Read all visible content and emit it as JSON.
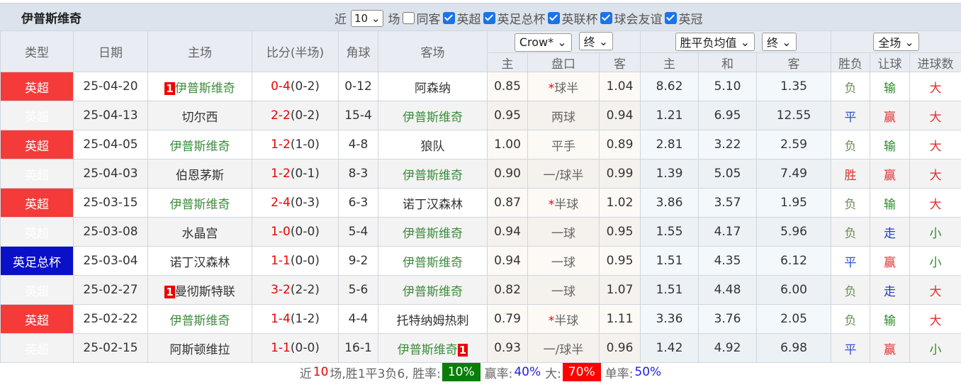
{
  "title": "伊普斯维奇",
  "filters": {
    "recent_label": "近",
    "count": "10",
    "games_label": "场",
    "same_venue": {
      "label": "同客",
      "checked": false
    },
    "competitions": [
      {
        "label": "英超",
        "checked": true
      },
      {
        "label": "英足总杯",
        "checked": true
      },
      {
        "label": "英联杯",
        "checked": true
      },
      {
        "label": "球会友谊",
        "checked": true
      },
      {
        "label": "英冠",
        "checked": true
      }
    ]
  },
  "headers": {
    "type": "类型",
    "date": "日期",
    "home": "主场",
    "score": "比分(半场)",
    "corner": "角球",
    "away": "客场",
    "ah_company": "Crow*",
    "ah_stage": "终",
    "eu_type": "胜平负均值",
    "eu_stage": "终",
    "result_scope": "全场",
    "ah_home": "主",
    "ah_line": "盘口",
    "ah_away": "客",
    "eu_home": "主",
    "eu_draw": "和",
    "eu_away": "客",
    "wl": "胜负",
    "hc": "让球",
    "goals": "进球数"
  },
  "rows": [
    {
      "type": "英超",
      "cup": false,
      "date": "25-04-20",
      "home": "伊普斯维奇",
      "home_rc": "1",
      "home_ips": true,
      "ft": "0-4",
      "ht": "(0-2)",
      "corner": "0-12",
      "away": "阿森纳",
      "away_rc": "",
      "away_ips": false,
      "ah_h": "0.85",
      "ah_star": "*",
      "ah_line": "球半",
      "ah_a": "1.04",
      "eu_h": "8.62",
      "eu_d": "5.10",
      "eu_a": "1.35",
      "wl": "负",
      "hc": "输",
      "goals": "大"
    },
    {
      "type": "英超",
      "cup": false,
      "date": "25-04-13",
      "home": "切尔西",
      "home_rc": "",
      "home_ips": false,
      "ft": "2-2",
      "ht": "(0-2)",
      "corner": "15-4",
      "away": "伊普斯维奇",
      "away_rc": "",
      "away_ips": true,
      "ah_h": "0.95",
      "ah_star": "",
      "ah_line": "两球",
      "ah_a": "0.94",
      "eu_h": "1.21",
      "eu_d": "6.95",
      "eu_a": "12.55",
      "wl": "平",
      "hc": "赢",
      "goals": "大"
    },
    {
      "type": "英超",
      "cup": false,
      "date": "25-04-05",
      "home": "伊普斯维奇",
      "home_rc": "",
      "home_ips": true,
      "ft": "1-2",
      "ht": "(1-0)",
      "corner": "4-8",
      "away": "狼队",
      "away_rc": "",
      "away_ips": false,
      "ah_h": "1.00",
      "ah_star": "",
      "ah_line": "平手",
      "ah_a": "0.89",
      "eu_h": "2.81",
      "eu_d": "3.22",
      "eu_a": "2.59",
      "wl": "负",
      "hc": "输",
      "goals": "大"
    },
    {
      "type": "英超",
      "cup": false,
      "date": "25-04-03",
      "home": "伯恩茅斯",
      "home_rc": "",
      "home_ips": false,
      "ft": "1-2",
      "ht": "(0-1)",
      "corner": "8-3",
      "away": "伊普斯维奇",
      "away_rc": "",
      "away_ips": true,
      "ah_h": "0.90",
      "ah_star": "",
      "ah_line": "一/球半",
      "ah_a": "0.99",
      "eu_h": "1.39",
      "eu_d": "5.05",
      "eu_a": "7.49",
      "wl": "胜",
      "hc": "赢",
      "goals": "大"
    },
    {
      "type": "英超",
      "cup": false,
      "date": "25-03-15",
      "home": "伊普斯维奇",
      "home_rc": "",
      "home_ips": true,
      "ft": "2-4",
      "ht": "(0-3)",
      "corner": "6-3",
      "away": "诺丁汉森林",
      "away_rc": "",
      "away_ips": false,
      "ah_h": "0.87",
      "ah_star": "*",
      "ah_line": "半球",
      "ah_a": "1.02",
      "eu_h": "3.86",
      "eu_d": "3.57",
      "eu_a": "1.95",
      "wl": "负",
      "hc": "输",
      "goals": "大"
    },
    {
      "type": "英超",
      "cup": false,
      "date": "25-03-08",
      "home": "水晶宫",
      "home_rc": "",
      "home_ips": false,
      "ft": "1-0",
      "ht": "(0-0)",
      "corner": "5-4",
      "away": "伊普斯维奇",
      "away_rc": "",
      "away_ips": true,
      "ah_h": "0.94",
      "ah_star": "",
      "ah_line": "一球",
      "ah_a": "0.95",
      "eu_h": "1.55",
      "eu_d": "4.17",
      "eu_a": "5.96",
      "wl": "负",
      "hc": "走",
      "goals": "小"
    },
    {
      "type": "英足总杯",
      "cup": true,
      "date": "25-03-04",
      "home": "诺丁汉森林",
      "home_rc": "",
      "home_ips": false,
      "ft": "1-1",
      "ht": "(0-0)",
      "corner": "9-2",
      "away": "伊普斯维奇",
      "away_rc": "",
      "away_ips": true,
      "ah_h": "0.94",
      "ah_star": "",
      "ah_line": "一球",
      "ah_a": "0.95",
      "eu_h": "1.51",
      "eu_d": "4.35",
      "eu_a": "6.12",
      "wl": "平",
      "hc": "赢",
      "goals": "小"
    },
    {
      "type": "英超",
      "cup": false,
      "date": "25-02-27",
      "home": "曼彻斯特联",
      "home_rc": "1",
      "home_ips": false,
      "ft": "3-2",
      "ht": "(2-2)",
      "corner": "5-6",
      "away": "伊普斯维奇",
      "away_rc": "",
      "away_ips": true,
      "ah_h": "0.82",
      "ah_star": "",
      "ah_line": "一球",
      "ah_a": "1.07",
      "eu_h": "1.51",
      "eu_d": "4.48",
      "eu_a": "6.00",
      "wl": "负",
      "hc": "走",
      "goals": "大"
    },
    {
      "type": "英超",
      "cup": false,
      "date": "25-02-22",
      "home": "伊普斯维奇",
      "home_rc": "",
      "home_ips": true,
      "ft": "1-4",
      "ht": "(1-2)",
      "corner": "4-4",
      "away": "托特纳姆热刺",
      "away_rc": "",
      "away_ips": false,
      "ah_h": "0.79",
      "ah_star": "*",
      "ah_line": "半球",
      "ah_a": "1.11",
      "eu_h": "3.36",
      "eu_d": "3.76",
      "eu_a": "2.05",
      "wl": "负",
      "hc": "输",
      "goals": "大"
    },
    {
      "type": "英超",
      "cup": false,
      "date": "25-02-15",
      "home": "阿斯顿维拉",
      "home_rc": "",
      "home_ips": false,
      "ft": "1-1",
      "ht": "(0-0)",
      "corner": "16-1",
      "away": "伊普斯维奇",
      "away_rc": "1",
      "away_ips": true,
      "ah_h": "0.93",
      "ah_star": "",
      "ah_line": "一/球半",
      "ah_a": "0.96",
      "eu_h": "1.42",
      "eu_d": "4.92",
      "eu_a": "6.98",
      "wl": "平",
      "hc": "赢",
      "goals": "小"
    }
  ],
  "summary": {
    "p1": "近",
    "n": "10",
    "p2": "场,胜1平3负6, 胜率:",
    "win_rate": "10%",
    "p3": "赢率:",
    "cover_rate": "40%",
    "p4": "大:",
    "over_rate": "70%",
    "p5": "单率:",
    "odd_rate": "50%"
  }
}
